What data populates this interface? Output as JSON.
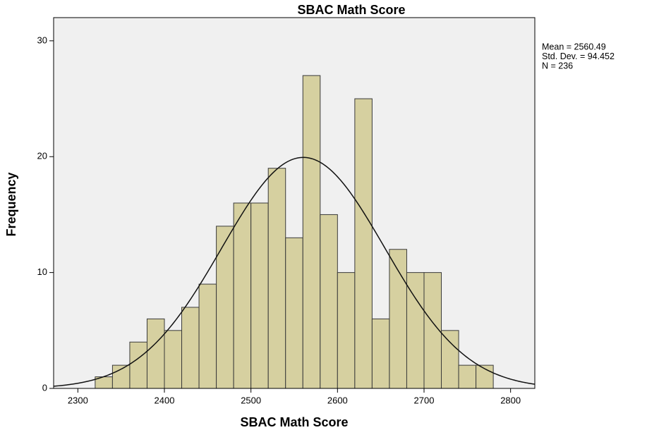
{
  "chart_data": {
    "type": "histogram",
    "title": "SBAC Math Score",
    "x_label": "SBAC Math Score",
    "y_label": "Frequency",
    "bins": [
      2320,
      2340,
      2360,
      2380,
      2400,
      2420,
      2440,
      2460,
      2480,
      2500,
      2520,
      2540,
      2560,
      2580,
      2600,
      2620,
      2640,
      2660,
      2680,
      2700,
      2720,
      2740,
      2760,
      2780
    ],
    "values": [
      1,
      2,
      4,
      6,
      5,
      7,
      9,
      14,
      16,
      16,
      19,
      13,
      27,
      15,
      10,
      25,
      6,
      12,
      10,
      10,
      5,
      2,
      2
    ],
    "color": "#d6d0a0",
    "stats": [
      {
        "value": 2560.49,
        "label": "Mean = 2560.49"
      },
      {
        "value": 94.452,
        "label": "Std. Dev. = 94.452"
      },
      {
        "value": 236,
        "label": "N = 236"
      }
    ],
    "xlim": [
      2272,
      2828
    ],
    "xticks": [
      2300,
      2400,
      2500,
      2600,
      2700,
      2800
    ],
    "ylim": [
      0,
      32
    ],
    "yticks": [
      0,
      10,
      20,
      30
    ]
  }
}
